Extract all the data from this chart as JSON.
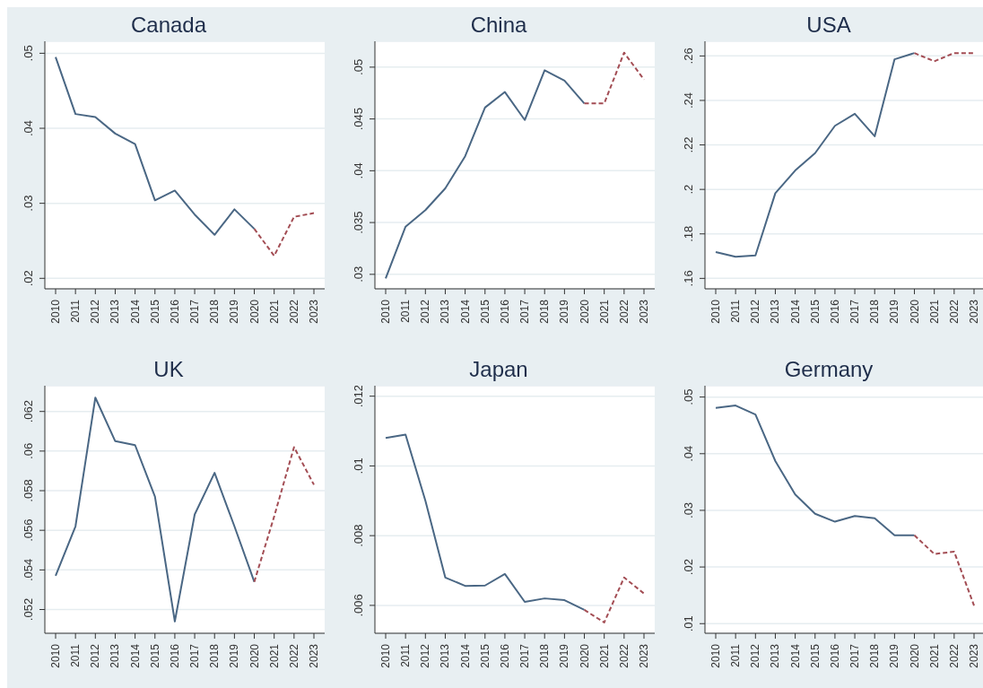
{
  "chart_data": [
    {
      "type": "line",
      "title": "Canada",
      "categories": [
        "2010",
        "2011",
        "2012",
        "2013",
        "2014",
        "2015",
        "2016",
        "2017",
        "2018",
        "2019",
        "2020",
        "2021",
        "2022",
        "2023"
      ],
      "ylim": [
        0.0186,
        0.0516
      ],
      "yticks": [
        {
          "value": 0.02,
          "label": ".02"
        },
        {
          "value": 0.03,
          "label": ".03"
        },
        {
          "value": 0.04,
          "label": ".04"
        },
        {
          "value": 0.05,
          "label": ".05"
        }
      ],
      "grid": "y",
      "series": [
        {
          "color": "#4a6784",
          "line_style": "solid",
          "values": [
            0.0495,
            0.0419,
            0.0415,
            0.0393,
            0.0379,
            0.0304,
            0.0317,
            0.0285,
            0.0258,
            0.0292,
            0.0266,
            null,
            null,
            null
          ]
        },
        {
          "color": "#a34d54",
          "line_style": "dashed",
          "values": [
            null,
            null,
            null,
            null,
            null,
            null,
            null,
            null,
            null,
            null,
            0.0266,
            0.023,
            0.0282,
            0.0287
          ]
        }
      ]
    },
    {
      "type": "line",
      "title": "China",
      "categories": [
        "2010",
        "2011",
        "2012",
        "2013",
        "2014",
        "2015",
        "2016",
        "2017",
        "2018",
        "2019",
        "2020",
        "2021",
        "2022",
        "2023"
      ],
      "ylim": [
        0.0286,
        0.0525
      ],
      "yticks": [
        {
          "value": 0.03,
          "label": ".03"
        },
        {
          "value": 0.035,
          "label": ".035"
        },
        {
          "value": 0.04,
          "label": ".04"
        },
        {
          "value": 0.045,
          "label": ".045"
        },
        {
          "value": 0.05,
          "label": ".05"
        }
      ],
      "grid": "y",
      "series": [
        {
          "color": "#4a6784",
          "line_style": "solid",
          "values": [
            0.0296,
            0.0346,
            0.0362,
            0.0383,
            0.0414,
            0.0461,
            0.0476,
            0.0449,
            0.0497,
            0.0487,
            0.0465,
            null,
            null,
            null
          ]
        },
        {
          "color": "#a34d54",
          "line_style": "dashed",
          "values": [
            null,
            null,
            null,
            null,
            null,
            null,
            null,
            null,
            null,
            null,
            0.0465,
            0.0465,
            0.0514,
            0.0488
          ]
        }
      ]
    },
    {
      "type": "line",
      "title": "USA",
      "categories": [
        "2010",
        "2011",
        "2012",
        "2013",
        "2014",
        "2015",
        "2016",
        "2017",
        "2018",
        "2019",
        "2020",
        "2021",
        "2022",
        "2023"
      ],
      "ylim": [
        0.1553,
        0.2666
      ],
      "yticks": [
        {
          "value": 0.16,
          "label": ".16"
        },
        {
          "value": 0.18,
          "label": ".18"
        },
        {
          "value": 0.2,
          "label": ".2"
        },
        {
          "value": 0.22,
          "label": ".22"
        },
        {
          "value": 0.24,
          "label": ".24"
        },
        {
          "value": 0.26,
          "label": ".26"
        }
      ],
      "grid": "y",
      "series": [
        {
          "color": "#4a6784",
          "line_style": "solid",
          "values": [
            0.1718,
            0.1697,
            0.1703,
            0.1983,
            0.2085,
            0.2163,
            0.2286,
            0.234,
            0.2239,
            0.2585,
            0.2613,
            null,
            null,
            null
          ]
        },
        {
          "color": "#a34d54",
          "line_style": "dashed",
          "values": [
            null,
            null,
            null,
            null,
            null,
            null,
            null,
            null,
            null,
            null,
            0.2613,
            0.2576,
            0.2613,
            0.2613
          ]
        }
      ]
    },
    {
      "type": "line",
      "title": "UK",
      "categories": [
        "2010",
        "2011",
        "2012",
        "2013",
        "2014",
        "2015",
        "2016",
        "2017",
        "2018",
        "2019",
        "2020",
        "2021",
        "2022",
        "2023"
      ],
      "ylim": [
        0.0508,
        0.0633
      ],
      "yticks": [
        {
          "value": 0.052,
          "label": ".052"
        },
        {
          "value": 0.054,
          "label": ".054"
        },
        {
          "value": 0.056,
          "label": ".056"
        },
        {
          "value": 0.058,
          "label": ".058"
        },
        {
          "value": 0.06,
          "label": ".06"
        },
        {
          "value": 0.062,
          "label": ".062"
        }
      ],
      "grid": "y",
      "series": [
        {
          "color": "#4a6784",
          "line_style": "solid",
          "values": [
            0.0537,
            0.0562,
            0.0627,
            0.0605,
            0.0603,
            0.0577,
            0.0514,
            0.0568,
            0.0589,
            0.0562,
            0.0534,
            null,
            null,
            null
          ]
        },
        {
          "color": "#a34d54",
          "line_style": "dashed",
          "values": [
            null,
            null,
            null,
            null,
            null,
            null,
            null,
            null,
            null,
            null,
            0.0534,
            0.0567,
            0.0602,
            0.0583
          ]
        }
      ]
    },
    {
      "type": "line",
      "title": "Japan",
      "categories": [
        "2010",
        "2011",
        "2012",
        "2013",
        "2014",
        "2015",
        "2016",
        "2017",
        "2018",
        "2019",
        "2020",
        "2021",
        "2022",
        "2023"
      ],
      "ylim": [
        0.0052,
        0.0123
      ],
      "yticks": [
        {
          "value": 0.006,
          "label": ".006"
        },
        {
          "value": 0.008,
          "label": ".008"
        },
        {
          "value": 0.01,
          "label": ".01"
        },
        {
          "value": 0.012,
          "label": ".012"
        }
      ],
      "grid": "y",
      "series": [
        {
          "color": "#4a6784",
          "line_style": "solid",
          "values": [
            0.0108,
            0.0109,
            0.009,
            0.0068,
            0.00656,
            0.00657,
            0.0069,
            0.0061,
            0.0062,
            0.00615,
            0.00587,
            null,
            null,
            null
          ]
        },
        {
          "color": "#a34d54",
          "line_style": "dashed",
          "values": [
            null,
            null,
            null,
            null,
            null,
            null,
            null,
            null,
            null,
            null,
            0.00587,
            0.00551,
            0.0068,
            0.00634
          ]
        }
      ]
    },
    {
      "type": "line",
      "title": "Germany",
      "categories": [
        "2010",
        "2011",
        "2012",
        "2013",
        "2014",
        "2015",
        "2016",
        "2017",
        "2018",
        "2019",
        "2020",
        "2021",
        "2022",
        "2023"
      ],
      "ylim": [
        0.0083,
        0.052
      ],
      "yticks": [
        {
          "value": 0.01,
          "label": ".01"
        },
        {
          "value": 0.02,
          "label": ".02"
        },
        {
          "value": 0.03,
          "label": ".03"
        },
        {
          "value": 0.04,
          "label": ".04"
        },
        {
          "value": 0.05,
          "label": ".05"
        }
      ],
      "grid": "y",
      "series": [
        {
          "color": "#4a6784",
          "line_style": "solid",
          "values": [
            0.0481,
            0.0485,
            0.0469,
            0.0387,
            0.0328,
            0.0294,
            0.028,
            0.029,
            0.0286,
            0.0256,
            0.0256,
            null,
            null,
            null
          ]
        },
        {
          "color": "#a34d54",
          "line_style": "dashed",
          "values": [
            null,
            null,
            null,
            null,
            null,
            null,
            null,
            null,
            null,
            null,
            0.0256,
            0.0223,
            0.0227,
            0.0132
          ]
        }
      ]
    }
  ]
}
